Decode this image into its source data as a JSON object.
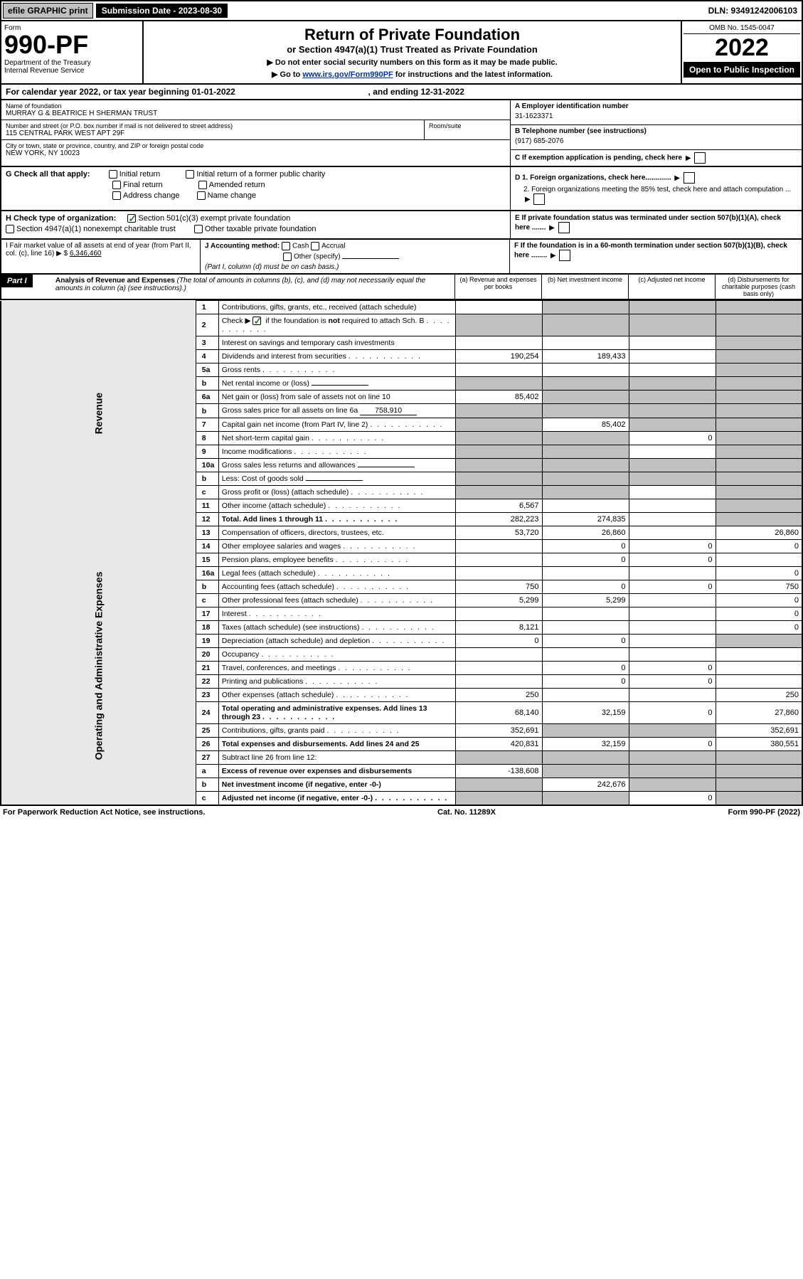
{
  "topbar": {
    "efile": "efile GRAPHIC print",
    "submission": "Submission Date - 2023-08-30",
    "dln": "DLN: 93491242006103"
  },
  "header": {
    "form_word": "Form",
    "form_num": "990-PF",
    "dept": "Department of the Treasury\nInternal Revenue Service",
    "title": "Return of Private Foundation",
    "subtitle": "or Section 4947(a)(1) Trust Treated as Private Foundation",
    "hint1": "▶ Do not enter social security numbers on this form as it may be made public.",
    "hint2_pre": "▶ Go to ",
    "hint2_link": "www.irs.gov/Form990PF",
    "hint2_post": " for instructions and the latest information.",
    "omb": "OMB No. 1545-0047",
    "year": "2022",
    "open": "Open to Public Inspection"
  },
  "calyear": {
    "text_pre": "For calendar year 2022, or tax year beginning ",
    "begin": "01-01-2022",
    "mid": " , and ending ",
    "end": "12-31-2022"
  },
  "id": {
    "name_label": "Name of foundation",
    "name": "MURRAY G & BEATRICE H SHERMAN TRUST",
    "addr_label": "Number and street (or P.O. box number if mail is not delivered to street address)",
    "addr": "115 CENTRAL PARK WEST APT 29F",
    "room_label": "Room/suite",
    "city_label": "City or town, state or province, country, and ZIP or foreign postal code",
    "city": "NEW YORK, NY  10023",
    "A_label": "A Employer identification number",
    "A_val": "31-1623371",
    "B_label": "B Telephone number (see instructions)",
    "B_val": "(917) 685-2076",
    "C_label": "C If exemption application is pending, check here"
  },
  "G": {
    "lead": "G Check all that apply:",
    "o1": "Initial return",
    "o2": "Initial return of a former public charity",
    "o3": "Final return",
    "o4": "Amended return",
    "o5": "Address change",
    "o6": "Name change"
  },
  "D": {
    "d1": "D 1. Foreign organizations, check here.............",
    "d2": "2. Foreign organizations meeting the 85% test, check here and attach computation ..."
  },
  "H": {
    "lead": "H Check type of organization:",
    "h1": "Section 501(c)(3) exempt private foundation",
    "h2": "Section 4947(a)(1) nonexempt charitable trust",
    "h3": "Other taxable private foundation"
  },
  "E": "E  If private foundation status was terminated under section 507(b)(1)(A), check here .......",
  "I": {
    "text": "I Fair market value of all assets at end of year (from Part II, col. (c), line 16) ▶ $",
    "val": "6,346,460"
  },
  "J": {
    "lead": "J Accounting method:",
    "o1": "Cash",
    "o2": "Accrual",
    "o3": "Other (specify)",
    "note": "(Part I, column (d) must be on cash basis.)"
  },
  "F": "F  If the foundation is in a 60-month termination under section 507(b)(1)(B), check here ........",
  "part1": {
    "title": "Part I",
    "heading": "Analysis of Revenue and Expenses",
    "heading_note": " (The total of amounts in columns (b), (c), and (d) may not necessarily equal the amounts in column (a) (see instructions).)",
    "col_a": "(a)  Revenue and expenses per books",
    "col_b": "(b)  Net investment income",
    "col_c": "(c)  Adjusted net income",
    "col_d": "(d)  Disbursements for charitable purposes (cash basis only)"
  },
  "sides": {
    "rev": "Revenue",
    "exp": "Operating and Administrative Expenses"
  },
  "rows": [
    {
      "n": "1",
      "label": "Contributions, gifts, grants, etc., received (attach schedule)",
      "a": "",
      "b": "grey",
      "c": "grey",
      "d": "grey"
    },
    {
      "n": "2",
      "label": "Check ▶ [✓] if the foundation is not required to attach Sch. B",
      "dots": true,
      "a": "grey",
      "b": "grey",
      "c": "grey",
      "d": "grey",
      "chk": true
    },
    {
      "n": "3",
      "label": "Interest on savings and temporary cash investments",
      "a": "",
      "b": "",
      "c": "",
      "d": "grey"
    },
    {
      "n": "4",
      "label": "Dividends and interest from securities",
      "dots": true,
      "a": "190,254",
      "b": "189,433",
      "c": "",
      "d": "grey"
    },
    {
      "n": "5a",
      "label": "Gross rents",
      "dots": true,
      "a": "",
      "b": "",
      "c": "",
      "d": "grey"
    },
    {
      "n": "b",
      "label": "Net rental income or (loss)",
      "inline": "",
      "a": "grey",
      "b": "grey",
      "c": "grey",
      "d": "grey"
    },
    {
      "n": "6a",
      "label": "Net gain or (loss) from sale of assets not on line 10",
      "a": "85,402",
      "b": "grey",
      "c": "grey",
      "d": "grey"
    },
    {
      "n": "b",
      "label": "Gross sales price for all assets on line 6a",
      "inline": "758,910",
      "a": "grey",
      "b": "grey",
      "c": "grey",
      "d": "grey"
    },
    {
      "n": "7",
      "label": "Capital gain net income (from Part IV, line 2)",
      "dots": true,
      "a": "grey",
      "b": "85,402",
      "c": "grey",
      "d": "grey"
    },
    {
      "n": "8",
      "label": "Net short-term capital gain",
      "dots": true,
      "a": "grey",
      "b": "grey",
      "c": "0",
      "d": "grey"
    },
    {
      "n": "9",
      "label": "Income modifications",
      "dots": true,
      "a": "grey",
      "b": "grey",
      "c": "",
      "d": "grey"
    },
    {
      "n": "10a",
      "label": "Gross sales less returns and allowances",
      "inline": "",
      "a": "grey",
      "b": "grey",
      "c": "grey",
      "d": "grey"
    },
    {
      "n": "b",
      "label": "Less: Cost of goods sold",
      "dots": true,
      "inline": "",
      "a": "grey",
      "b": "grey",
      "c": "grey",
      "d": "grey"
    },
    {
      "n": "c",
      "label": "Gross profit or (loss) (attach schedule)",
      "dots": true,
      "a": "grey",
      "b": "grey",
      "c": "",
      "d": "grey"
    },
    {
      "n": "11",
      "label": "Other income (attach schedule)",
      "dots": true,
      "a": "6,567",
      "b": "",
      "c": "",
      "d": "grey"
    },
    {
      "n": "12",
      "label": "Total. Add lines 1 through 11",
      "dots": true,
      "bold": true,
      "a": "282,223",
      "b": "274,835",
      "c": "",
      "d": "grey"
    },
    {
      "n": "13",
      "label": "Compensation of officers, directors, trustees, etc.",
      "a": "53,720",
      "b": "26,860",
      "c": "",
      "d": "26,860",
      "exp": true
    },
    {
      "n": "14",
      "label": "Other employee salaries and wages",
      "dots": true,
      "a": "",
      "b": "0",
      "c": "0",
      "d": "0"
    },
    {
      "n": "15",
      "label": "Pension plans, employee benefits",
      "dots": true,
      "a": "",
      "b": "0",
      "c": "0",
      "d": ""
    },
    {
      "n": "16a",
      "label": "Legal fees (attach schedule)",
      "dots": true,
      "a": "",
      "b": "",
      "c": "",
      "d": "0"
    },
    {
      "n": "b",
      "label": "Accounting fees (attach schedule)",
      "dots": true,
      "a": "750",
      "b": "0",
      "c": "0",
      "d": "750"
    },
    {
      "n": "c",
      "label": "Other professional fees (attach schedule)",
      "dots": true,
      "a": "5,299",
      "b": "5,299",
      "c": "",
      "d": "0"
    },
    {
      "n": "17",
      "label": "Interest",
      "dots": true,
      "a": "",
      "b": "",
      "c": "",
      "d": "0"
    },
    {
      "n": "18",
      "label": "Taxes (attach schedule) (see instructions)",
      "dots": true,
      "a": "8,121",
      "b": "",
      "c": "",
      "d": "0"
    },
    {
      "n": "19",
      "label": "Depreciation (attach schedule) and depletion",
      "dots": true,
      "a": "0",
      "b": "0",
      "c": "",
      "d": "grey"
    },
    {
      "n": "20",
      "label": "Occupancy",
      "dots": true,
      "a": "",
      "b": "",
      "c": "",
      "d": ""
    },
    {
      "n": "21",
      "label": "Travel, conferences, and meetings",
      "dots": true,
      "a": "",
      "b": "0",
      "c": "0",
      "d": ""
    },
    {
      "n": "22",
      "label": "Printing and publications",
      "dots": true,
      "a": "",
      "b": "0",
      "c": "0",
      "d": ""
    },
    {
      "n": "23",
      "label": "Other expenses (attach schedule)",
      "dots": true,
      "a": "250",
      "b": "",
      "c": "",
      "d": "250"
    },
    {
      "n": "24",
      "label": "Total operating and administrative expenses. Add lines 13 through 23",
      "dots": true,
      "bold": true,
      "a": "68,140",
      "b": "32,159",
      "c": "0",
      "d": "27,860"
    },
    {
      "n": "25",
      "label": "Contributions, gifts, grants paid",
      "dots": true,
      "a": "352,691",
      "b": "grey",
      "c": "grey",
      "d": "352,691"
    },
    {
      "n": "26",
      "label": "Total expenses and disbursements. Add lines 24 and 25",
      "bold": true,
      "a": "420,831",
      "b": "32,159",
      "c": "0",
      "d": "380,551"
    },
    {
      "n": "27",
      "label": "Subtract line 26 from line 12:",
      "a": "grey",
      "b": "grey",
      "c": "grey",
      "d": "grey"
    },
    {
      "n": "a",
      "label": "Excess of revenue over expenses and disbursements",
      "bold": true,
      "a": "-138,608",
      "b": "grey",
      "c": "grey",
      "d": "grey"
    },
    {
      "n": "b",
      "label": "Net investment income (if negative, enter -0-)",
      "bold": true,
      "a": "grey",
      "b": "242,676",
      "c": "grey",
      "d": "grey"
    },
    {
      "n": "c",
      "label": "Adjusted net income (if negative, enter -0-)",
      "dots": true,
      "bold": true,
      "a": "grey",
      "b": "grey",
      "c": "0",
      "d": "grey"
    }
  ],
  "footer": {
    "left": "For Paperwork Reduction Act Notice, see instructions.",
    "mid": "Cat. No. 11289X",
    "right": "Form 990-PF (2022)"
  },
  "colors": {
    "black": "#000000",
    "white": "#ffffff",
    "grey_btn": "#c0c0c0",
    "grey_cell": "#c0c0c0",
    "side_grey": "#e8e8e8",
    "link": "#003399",
    "check_green": "#2e7d32"
  }
}
